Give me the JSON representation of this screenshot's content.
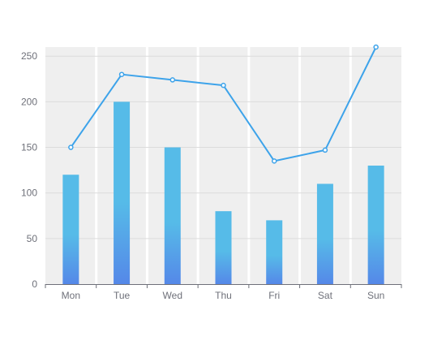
{
  "chart_data": {
    "type": "bar",
    "categories": [
      "Mon",
      "Tue",
      "Wed",
      "Thu",
      "Fri",
      "Sat",
      "Sun"
    ],
    "series": [
      {
        "type": "bar",
        "values": [
          120,
          200,
          150,
          80,
          70,
          110,
          130
        ]
      },
      {
        "type": "line",
        "values": [
          150,
          230,
          224,
          218,
          135,
          147,
          260
        ]
      }
    ],
    "yticks": [
      "0",
      "50",
      "100",
      "150",
      "200",
      "250"
    ],
    "ylim": [
      0,
      260
    ],
    "grid": true,
    "colors": {
      "bar_top": "#56bbe8",
      "bar_bottom": "#5588e8",
      "line": "#3da3ea",
      "plot_background": "#efefef",
      "band_separator": "#ffffff",
      "gridline": "#dcdcdc",
      "axis": "#6e7079",
      "tick_label": "#6e7079"
    }
  }
}
